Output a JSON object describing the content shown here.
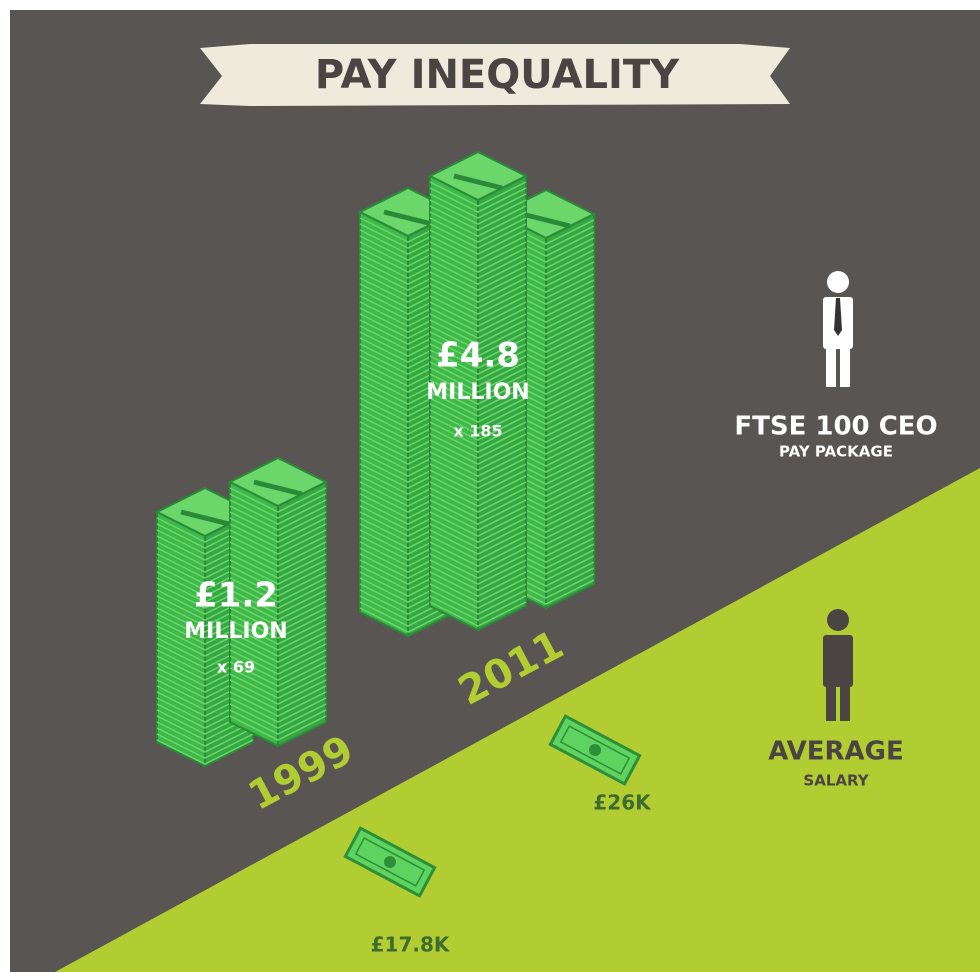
{
  "title": "PAY INEQUALITY",
  "ceo": {
    "label": "FTSE 100 CEO",
    "sublabel": "PAY PACKAGE"
  },
  "average": {
    "label": "AVERAGE",
    "sublabel": "SALARY"
  },
  "years": [
    {
      "year": "1999",
      "ceo_pay": "£1.2",
      "ceo_unit": "MILLION",
      "ratio": "x 69",
      "average_salary": "£17.8K"
    },
    {
      "year": "2011",
      "ceo_pay": "£4.8",
      "ceo_unit": "MILLION",
      "ratio": "x 185",
      "average_salary": "£26K"
    }
  ]
}
